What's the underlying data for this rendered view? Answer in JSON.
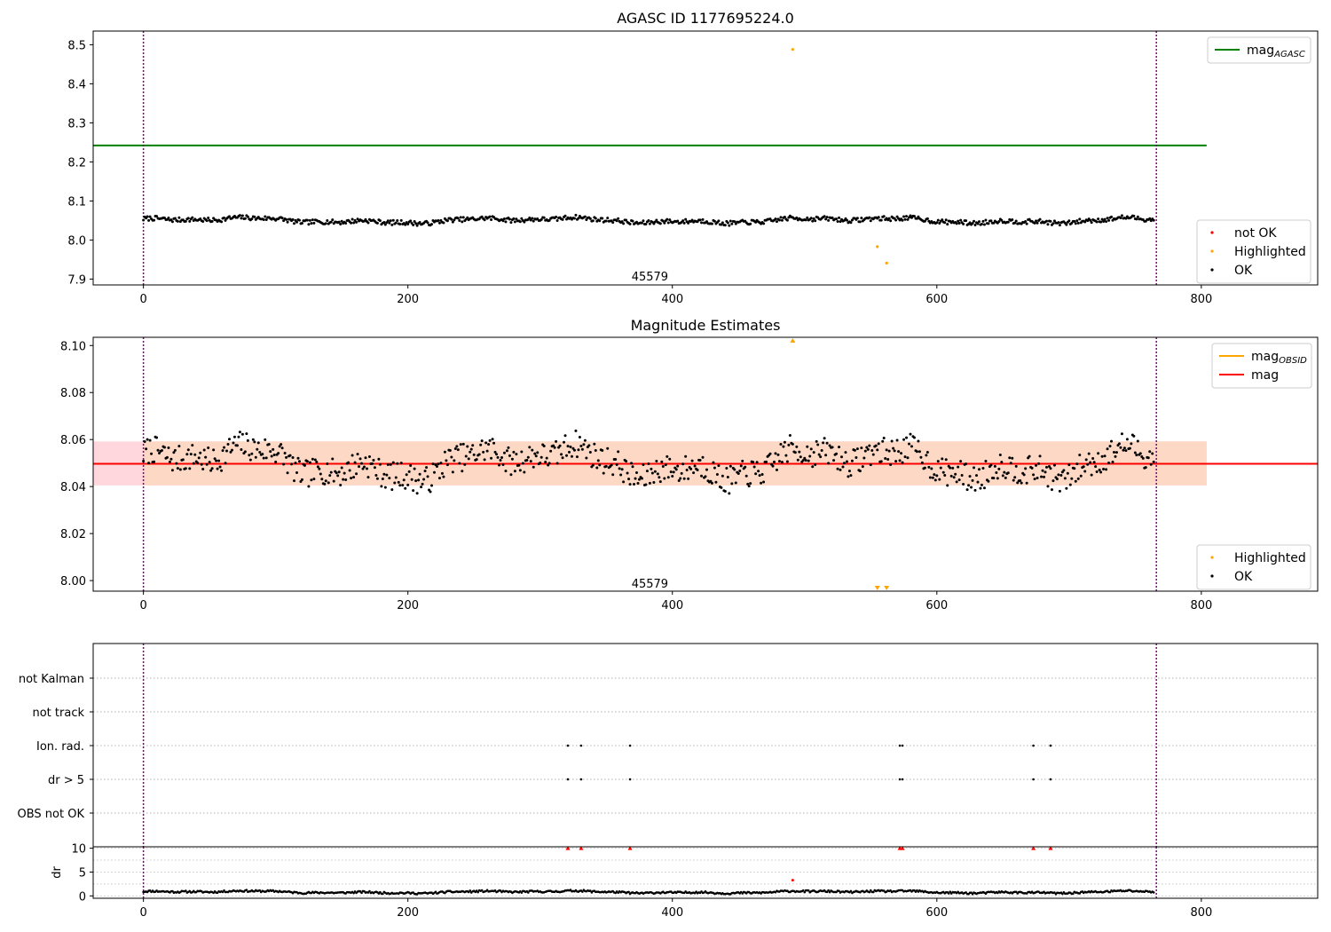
{
  "chart_data": [
    {
      "type": "scatter",
      "title": "AGASC ID 1177695224.0",
      "xlim": [
        -38,
        888
      ],
      "ylim": [
        7.885,
        8.535
      ],
      "xticks": [
        0,
        200,
        400,
        600,
        800
      ],
      "xtick_labels": [
        "0",
        "200",
        "400",
        "600",
        "800"
      ],
      "yticks": [
        7.9,
        8.0,
        8.1,
        8.2,
        8.3,
        8.4,
        8.5
      ],
      "ytick_labels": [
        "7.9",
        "8.0",
        "8.1",
        "8.2",
        "8.3",
        "8.4",
        "8.5"
      ],
      "vlines": [
        0,
        766
      ],
      "annotation": {
        "text": "45579",
        "x": 383,
        "y": 7.905
      },
      "hline": {
        "name": "mag_AGASC",
        "y": 8.242,
        "x_range": [
          -38,
          804
        ],
        "color": "#008000"
      },
      "series": [
        {
          "name": "not OK",
          "color": "#ff0000",
          "points": []
        },
        {
          "name": "Highlighted",
          "color": "#ffa500",
          "points": [
            [
              491,
              8.488
            ],
            [
              555,
              7.983
            ],
            [
              562,
              7.941
            ]
          ]
        },
        {
          "name": "OK",
          "color": "#000000",
          "generated": {
            "n": 765,
            "base": 8.05,
            "amp": 0.013,
            "seed": 7
          }
        }
      ],
      "legends": [
        {
          "position": "top-right",
          "entries": [
            {
              "kind": "line",
              "label": "mag",
              "sub": "AGASC",
              "color": "#008000"
            }
          ]
        },
        {
          "position": "lower-right",
          "entries": [
            {
              "kind": "dot",
              "label": "not OK",
              "color": "#ff0000"
            },
            {
              "kind": "dot",
              "label": "Highlighted",
              "color": "#ffa500"
            },
            {
              "kind": "dot",
              "label": "OK",
              "color": "#000000"
            }
          ]
        }
      ]
    },
    {
      "type": "scatter",
      "title": "Magnitude Estimates",
      "xlim": [
        -38,
        888
      ],
      "ylim": [
        7.9955,
        8.1035
      ],
      "xticks": [
        0,
        200,
        400,
        600,
        800
      ],
      "xtick_labels": [
        "0",
        "200",
        "400",
        "600",
        "800"
      ],
      "yticks": [
        8.0,
        8.02,
        8.04,
        8.06,
        8.08,
        8.1
      ],
      "ytick_labels": [
        "8.00",
        "8.02",
        "8.04",
        "8.06",
        "8.08",
        "8.10"
      ],
      "vlines": [
        0,
        766
      ],
      "annotation": {
        "text": "45579",
        "x": 383,
        "y": 7.9985
      },
      "band_outer": {
        "y_range": [
          8.0405,
          8.0592
        ],
        "x_range": [
          -38,
          804
        ],
        "color": "#ffd7dc"
      },
      "band_inner": {
        "y_range": [
          8.0405,
          8.0592
        ],
        "x_range": [
          0,
          804
        ],
        "color": "#fdd8c4"
      },
      "mag_line": {
        "name": "mag",
        "y": 8.0497,
        "color": "#ff0000"
      },
      "mag_obsid_line": {
        "name": "mag_OBSID",
        "y": 8.0497,
        "x_range": [
          0,
          766
        ],
        "color": "#ffa500"
      },
      "out_of_range_markers": [
        {
          "x": 491,
          "dir": "up",
          "color": "#ffa500"
        },
        {
          "x": 555,
          "dir": "down",
          "color": "#ffa500"
        },
        {
          "x": 562,
          "dir": "down",
          "color": "#ffa500"
        }
      ],
      "series": [
        {
          "name": "Highlighted",
          "color": "#ffa500",
          "points": []
        },
        {
          "name": "OK",
          "color": "#000000",
          "generated": {
            "n": 765,
            "base": 8.05,
            "amp": 0.013,
            "seed": 7
          }
        }
      ],
      "legends": [
        {
          "position": "top-right",
          "entries": [
            {
              "kind": "line",
              "label": "mag",
              "sub": "OBSID",
              "color": "#ffa500"
            },
            {
              "kind": "line",
              "label": "mag",
              "sub": "",
              "color": "#ff0000"
            }
          ]
        },
        {
          "position": "lower-right",
          "entries": [
            {
              "kind": "dot",
              "label": "Highlighted",
              "color": "#ffa500"
            },
            {
              "kind": "dot",
              "label": "OK",
              "color": "#000000"
            }
          ]
        }
      ]
    },
    {
      "type": "scatter",
      "title": "",
      "xlim": [
        -38,
        888
      ],
      "categories": [
        "not Kalman",
        "not track",
        "Ion. rad.",
        "dr > 5",
        "OBS not OK"
      ],
      "vlines": [
        0,
        766
      ],
      "flag_points": {
        "Ion. rad.": [
          321,
          331,
          368,
          572,
          574,
          673,
          686
        ],
        "dr > 5": [
          321,
          331,
          368,
          572,
          574,
          673,
          686
        ],
        "not Kalman": [],
        "not track": [],
        "OBS not OK": []
      },
      "color": "#000000"
    },
    {
      "type": "scatter",
      "title": "",
      "ylabel": "dr",
      "xlim": [
        -38,
        888
      ],
      "ylim": [
        -0.5,
        10.3
      ],
      "xticks": [
        0,
        200,
        400,
        600,
        800
      ],
      "xtick_labels": [
        "0",
        "200",
        "400",
        "600",
        "800"
      ],
      "yticks": [
        0,
        5,
        10
      ],
      "ytick_labels": [
        "0",
        "5",
        "10"
      ],
      "vlines": [
        0,
        766
      ],
      "clipped_markers": {
        "x": [
          321,
          331,
          368,
          572,
          574,
          673,
          686
        ],
        "y": 10,
        "color": "#ff0000"
      },
      "highlight_point": {
        "x": 491,
        "y": 3.3,
        "color": "#ff0000"
      },
      "series": [
        {
          "name": "dr",
          "color": "#000000",
          "generated": {
            "n": 765,
            "base": 0.8,
            "amp": 0.45,
            "seed": 11
          }
        }
      ]
    }
  ]
}
